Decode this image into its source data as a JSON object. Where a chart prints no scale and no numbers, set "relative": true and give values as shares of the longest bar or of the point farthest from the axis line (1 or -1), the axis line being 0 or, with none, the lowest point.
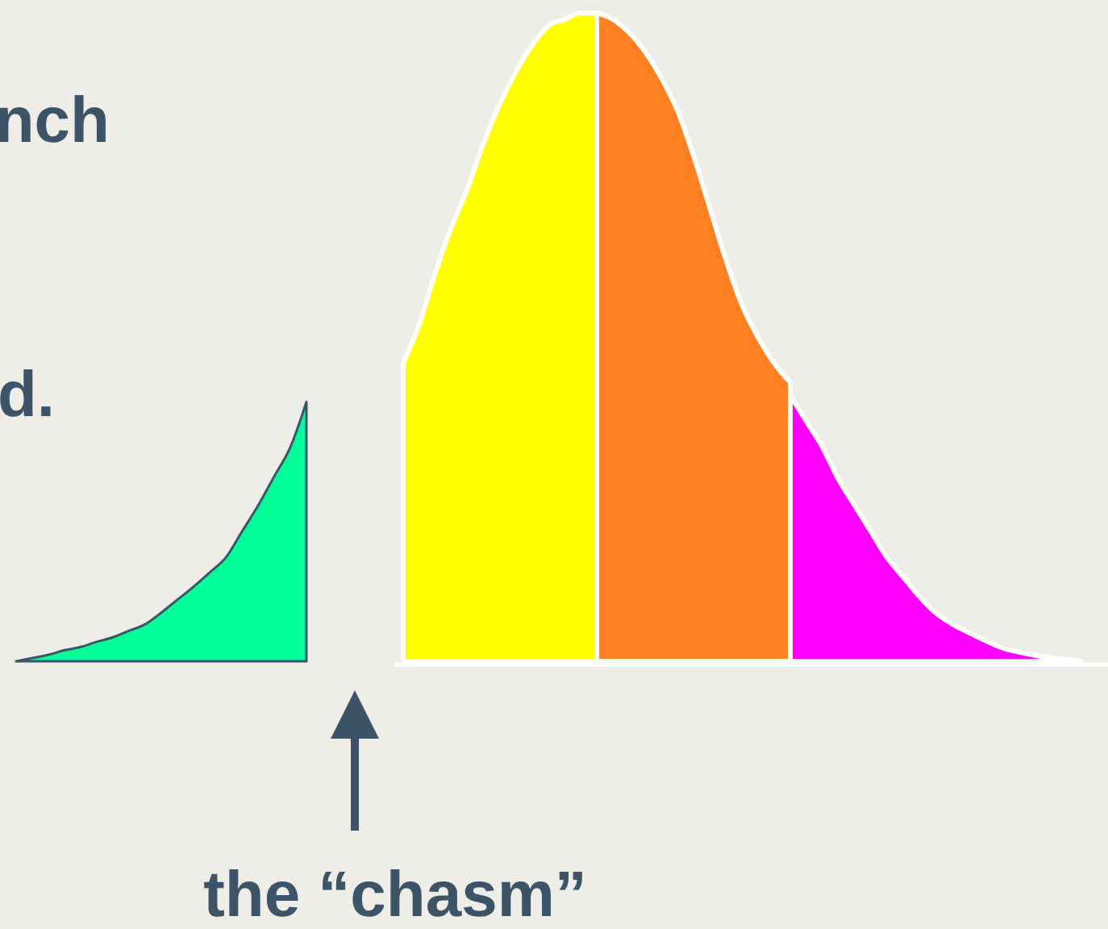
{
  "chart_data": {
    "type": "area",
    "relative": true,
    "categories": [
      null,
      null,
      null,
      null,
      null,
      null,
      null,
      null,
      null,
      null,
      null,
      null,
      null,
      null,
      null,
      null,
      null,
      null,
      null,
      null,
      null,
      null,
      null,
      null,
      null,
      null,
      null,
      null,
      null,
      null,
      null,
      null,
      null,
      null,
      null,
      null,
      null,
      null,
      null,
      null,
      null,
      null,
      null,
      null,
      null,
      null,
      null,
      null,
      null,
      null,
      null,
      null,
      null,
      null,
      null,
      null,
      null,
      null,
      null,
      null,
      null,
      null,
      null,
      null,
      null,
      null,
      null
    ],
    "series": [
      {
        "color": "#00ff99",
        "values": [
          0,
          0.005,
          0.01,
          0.017,
          0.022,
          0.03,
          0.037,
          0.047,
          0.057,
          0.075,
          0.095,
          0.115,
          0.137,
          0.16,
          0.2,
          0.24,
          0.285,
          0.33,
          0.4,
          null,
          null,
          null,
          null,
          null,
          null,
          null,
          null,
          null,
          null,
          null,
          null,
          null,
          null,
          null,
          null,
          null,
          null,
          null,
          null,
          null,
          null,
          null,
          null,
          null,
          null,
          null,
          null,
          null,
          null,
          null,
          null,
          null,
          null,
          null,
          null,
          null,
          null,
          null,
          null,
          null,
          null,
          null,
          null,
          null,
          null,
          null,
          null
        ]
      },
      {
        "color": "#ffff00",
        "values": [
          null,
          null,
          null,
          null,
          null,
          null,
          null,
          null,
          null,
          null,
          null,
          null,
          null,
          null,
          null,
          null,
          null,
          null,
          null,
          null,
          null,
          null,
          null,
          null,
          0.46,
          0.52,
          0.6,
          0.67,
          0.73,
          0.8,
          0.86,
          0.91,
          0.95,
          0.98,
          0.99,
          1,
          1,
          null,
          null,
          null,
          null,
          null,
          null,
          null,
          null,
          null,
          null,
          null,
          null,
          null,
          null,
          null,
          null,
          null,
          null,
          null,
          null,
          null,
          null,
          null,
          null,
          null,
          null,
          null,
          null,
          null,
          null
        ]
      },
      {
        "color": "#ff8020",
        "values": [
          null,
          null,
          null,
          null,
          null,
          null,
          null,
          null,
          null,
          null,
          null,
          null,
          null,
          null,
          null,
          null,
          null,
          null,
          null,
          null,
          null,
          null,
          null,
          null,
          null,
          null,
          null,
          null,
          null,
          null,
          null,
          null,
          null,
          null,
          null,
          null,
          1,
          0.99,
          0.97,
          0.94,
          0.9,
          0.85,
          0.78,
          0.7,
          0.62,
          0.55,
          0.5,
          0.46,
          0.43,
          null,
          null,
          null,
          null,
          null,
          null,
          null,
          null,
          null,
          null,
          null,
          null,
          null,
          null,
          null,
          null,
          null,
          null
        ]
      },
      {
        "color": "#ff00ff",
        "values": [
          null,
          null,
          null,
          null,
          null,
          null,
          null,
          null,
          null,
          null,
          null,
          null,
          null,
          null,
          null,
          null,
          null,
          null,
          null,
          null,
          null,
          null,
          null,
          null,
          null,
          null,
          null,
          null,
          null,
          null,
          null,
          null,
          null,
          null,
          null,
          null,
          null,
          null,
          null,
          null,
          null,
          null,
          null,
          null,
          null,
          null,
          null,
          null,
          0.41,
          0.37,
          0.33,
          0.28,
          0.24,
          0.2,
          0.16,
          0.13,
          0.1,
          0.075,
          0.058,
          0.045,
          0.033,
          0.022,
          0.015,
          0.01,
          0.006,
          0.003,
          0
        ]
      }
    ],
    "annotations": [
      "nch",
      "d.",
      "the “chasm”"
    ]
  }
}
